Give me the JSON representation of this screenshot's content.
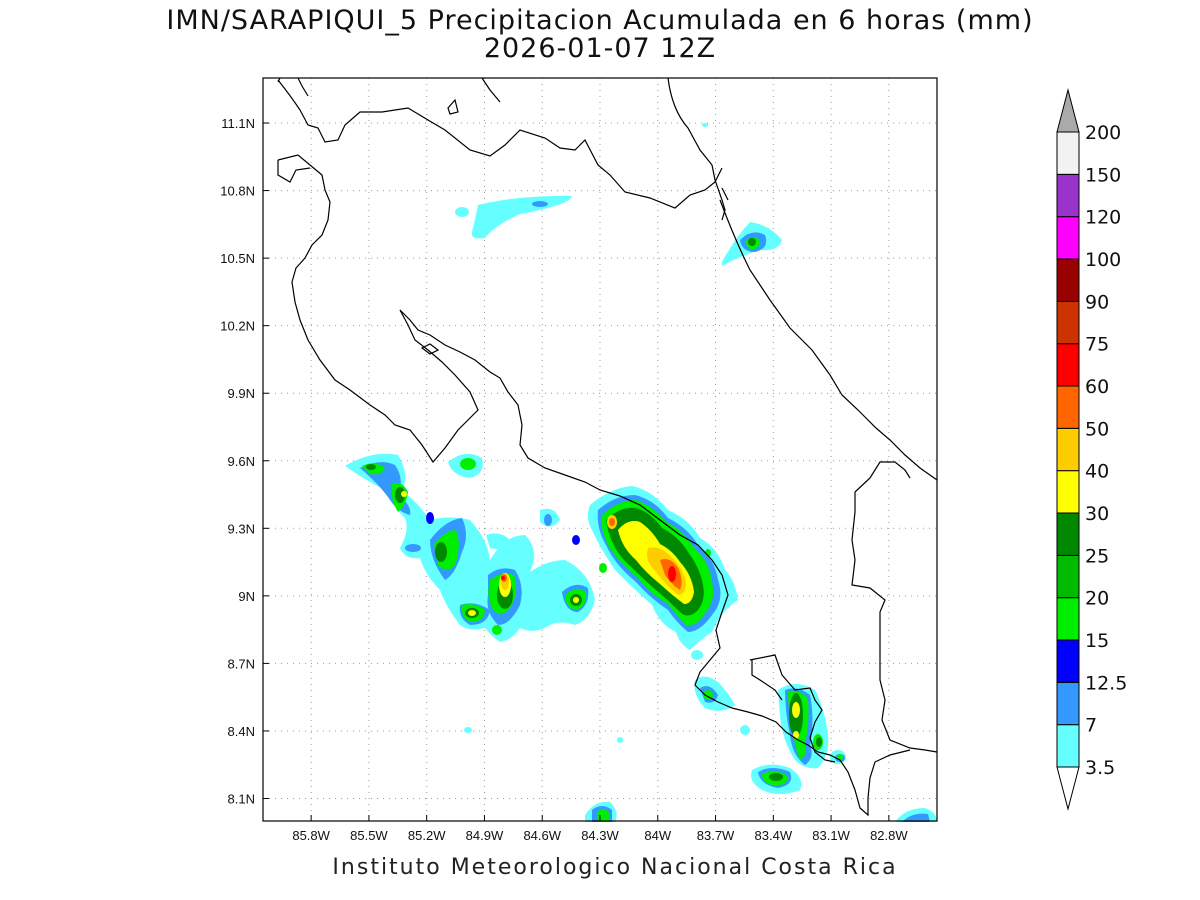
{
  "title": "IMN/SARAPIQUI_5 Precipitacion Acumulada en 6 horas (mm)",
  "subtitle": "2026-01-07 12Z",
  "footer": "Instituto Meteorologico Nacional Costa Rica",
  "map": {
    "lon_range": [
      -86.05,
      -82.55
    ],
    "lat_range": [
      8.0,
      11.3
    ],
    "lon_ticks": [
      "85.8W",
      "85.5W",
      "85.2W",
      "84.9W",
      "84.6W",
      "84.3W",
      "84W",
      "83.7W",
      "83.4W",
      "83.1W",
      "82.8W"
    ],
    "lon_tick_values": [
      -85.8,
      -85.5,
      -85.2,
      -84.9,
      -84.6,
      -84.3,
      -84.0,
      -83.7,
      -83.4,
      -83.1,
      -82.8
    ],
    "lat_ticks": [
      "8.1N",
      "8.4N",
      "8.7N",
      "9N",
      "9.3N",
      "9.6N",
      "9.9N",
      "10.2N",
      "10.5N",
      "10.8N",
      "11.1N"
    ],
    "lat_tick_values": [
      8.1,
      8.4,
      8.7,
      9.0,
      9.3,
      9.6,
      9.9,
      10.2,
      10.5,
      10.8,
      11.1
    ],
    "grid": "dotted"
  },
  "colorbar": {
    "levels": [
      "3.5",
      "7",
      "12.5",
      "15",
      "20",
      "25",
      "30",
      "40",
      "50",
      "60",
      "75",
      "90",
      "100",
      "120",
      "150",
      "200"
    ],
    "colors": [
      "#ffffff",
      "#66ffff",
      "#3399ff",
      "#0000ff",
      "#00ee00",
      "#00bb00",
      "#008800",
      "#ffff00",
      "#ffcc00",
      "#ff6600",
      "#ff0000",
      "#cc3300",
      "#990000",
      "#ff00ff",
      "#9933cc",
      "#f2f2f2",
      "#aaaaaa"
    ]
  }
}
